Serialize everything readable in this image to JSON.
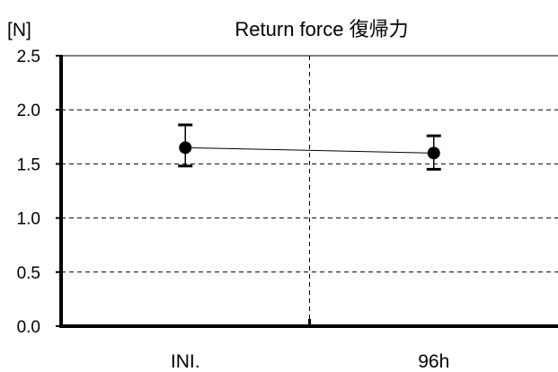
{
  "chart_data": {
    "type": "scatter",
    "title": "Return force 復帰力",
    "ylabel": "[N]",
    "xlabel": "",
    "categories": [
      "INI.",
      "96h"
    ],
    "series": [
      {
        "values": [
          1.65,
          1.6
        ],
        "error_upper": [
          1.86,
          1.76
        ],
        "error_lower": [
          1.48,
          1.45
        ],
        "marker": "circle",
        "connected": true,
        "color": "#000000"
      }
    ],
    "ylim": [
      0,
      2.5
    ],
    "yticks": [
      "0.0",
      "0.5",
      "1.0",
      "1.5",
      "2.0",
      "2.5"
    ],
    "grid": {
      "horizontal": "dashed",
      "vertical_separator": "dashed"
    },
    "colors": {
      "axis": "#000000",
      "grid": "#000000",
      "top_border": "#808080"
    }
  }
}
